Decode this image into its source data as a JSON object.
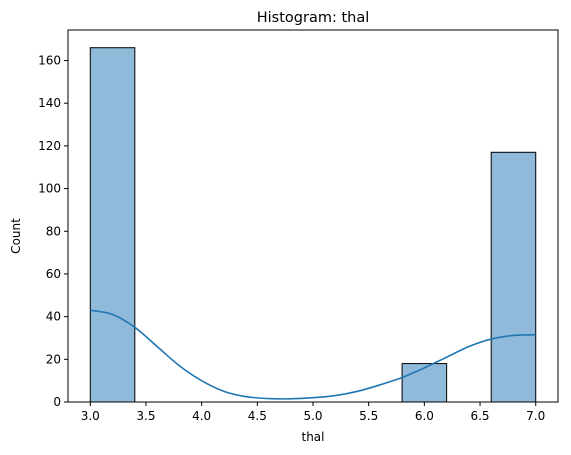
{
  "chart_data": {
    "type": "bar",
    "title": "Histogram: thal",
    "xlabel": "thal",
    "ylabel": "Count",
    "xlim": [
      2.8,
      7.2
    ],
    "ylim": [
      0,
      174.3
    ],
    "grid": false,
    "bar_color": "#8fbad9",
    "bar_edge_color": "#000000",
    "kde_color": "#1f77b4",
    "bins": [
      {
        "x0": 3.0,
        "x1": 3.4,
        "count": 166
      },
      {
        "x0": 3.4,
        "x1": 3.8,
        "count": 0
      },
      {
        "x0": 3.8,
        "x1": 4.2,
        "count": 0
      },
      {
        "x0": 4.2,
        "x1": 4.6,
        "count": 0
      },
      {
        "x0": 4.6,
        "x1": 5.0,
        "count": 0
      },
      {
        "x0": 5.0,
        "x1": 5.4,
        "count": 0
      },
      {
        "x0": 5.4,
        "x1": 5.8,
        "count": 0
      },
      {
        "x0": 5.8,
        "x1": 6.2,
        "count": 18
      },
      {
        "x0": 6.2,
        "x1": 6.6,
        "count": 0
      },
      {
        "x0": 6.6,
        "x1": 7.0,
        "count": 117
      }
    ],
    "kde": {
      "x": [
        3.0,
        3.2,
        3.4,
        3.6,
        3.8,
        4.0,
        4.2,
        4.4,
        4.6,
        4.8,
        5.0,
        5.2,
        5.4,
        5.6,
        5.8,
        6.0,
        6.2,
        6.4,
        6.6,
        6.8,
        7.0
      ],
      "y": [
        43,
        41,
        35,
        26,
        17,
        10,
        5,
        2.5,
        1.6,
        1.5,
        2,
        3,
        5,
        8,
        11.5,
        16,
        21,
        26,
        29.5,
        31.2,
        31.5
      ]
    },
    "x_ticks": [
      "3.0",
      "3.5",
      "4.0",
      "4.5",
      "5.0",
      "5.5",
      "6.0",
      "6.5",
      "7.0"
    ],
    "y_ticks": [
      "0",
      "20",
      "40",
      "60",
      "80",
      "100",
      "120",
      "140",
      "160"
    ]
  }
}
